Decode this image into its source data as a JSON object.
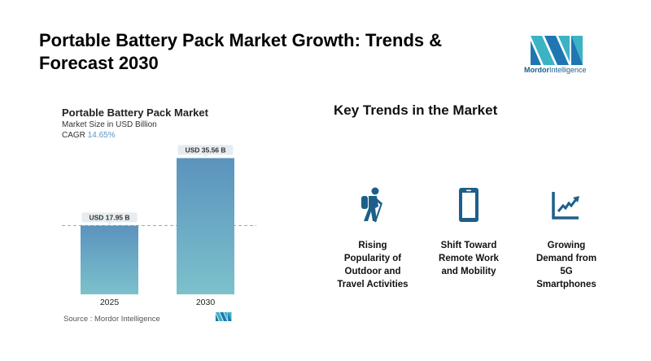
{
  "header": {
    "title": "Portable Battery Pack Market Growth: Trends & Forecast 2030",
    "logo_text_bold": "Mordor",
    "logo_text_light": "Intelligence"
  },
  "chart_card": {
    "title": "Portable Battery Pack Market",
    "subtitle": "Market Size in USD Billion",
    "cagr_label": "CAGR",
    "cagr_value": "14.65%",
    "source": "Source :  Mordor Intelligence"
  },
  "chart_data": {
    "type": "bar",
    "title": "Portable Battery Pack Market",
    "ylabel": "Market Size in USD Billion",
    "xlabel": "",
    "categories": [
      "2025",
      "2030"
    ],
    "values": [
      17.95,
      35.56
    ],
    "data_labels": [
      "USD 17.95 B",
      "USD 35.56 B"
    ],
    "ylim": [
      0,
      36.5
    ],
    "reference_line": 17.95,
    "grid": false,
    "colors": {
      "bar_top": "#5b93bd",
      "bar_bottom": "#7cc1cc",
      "label_bg": "#e6ecef"
    }
  },
  "trends": {
    "title": "Key Trends in the Market",
    "icon_color": "#1e5f8a",
    "items": [
      {
        "icon": "hiker-icon",
        "label_lines": [
          "Rising",
          "Popularity of",
          "Outdoor and",
          "Travel Activities"
        ]
      },
      {
        "icon": "smartphone-icon",
        "label_lines": [
          "Shift Toward",
          "Remote Work",
          "and Mobility"
        ]
      },
      {
        "icon": "growth-chart-icon",
        "label_lines": [
          "Growing",
          "Demand from",
          "5G",
          "Smartphones"
        ]
      }
    ]
  }
}
